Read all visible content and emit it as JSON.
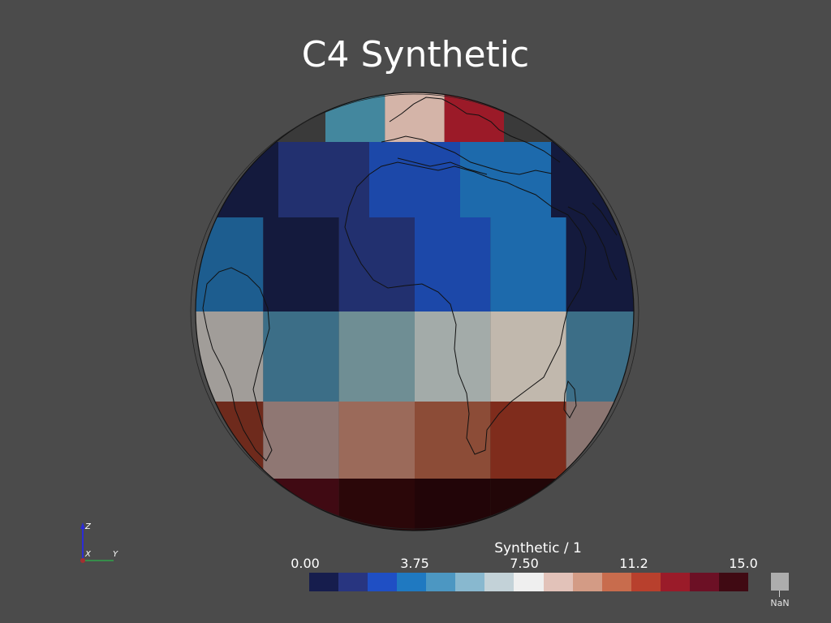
{
  "title": "C4 Synthetic",
  "colorbar": {
    "title": "Synthetic / 1",
    "ticks": [
      "0.00",
      "3.75",
      "7.50",
      "11.2",
      "15.0"
    ],
    "range": [
      0,
      15
    ],
    "colors": [
      "#161d4d",
      "#283580",
      "#1f4fc4",
      "#1f79c1",
      "#4c97c2",
      "#88b8cf",
      "#c3d2d8",
      "#efefef",
      "#e2c2b9",
      "#d39b85",
      "#c86c4d",
      "#b8402d",
      "#9a1b29",
      "#6c1025",
      "#400a13"
    ],
    "nan_label": "NaN",
    "nan_color": "#adadad"
  },
  "background": "#4b4b4b",
  "axes": {
    "x": "X",
    "y": "Y",
    "z": "Z"
  },
  "globe_cells": [
    [
      "#43879e",
      "#d4b4a8",
      "#9b1a28"
    ],
    [
      "#141a3d",
      "#22306f",
      "#1c48a9",
      "#1d6aac",
      "#141a3d"
    ],
    [
      "#1d5d8f",
      "#141a3d",
      "#22306f",
      "#1c48a9",
      "#1d6aac",
      "#141a3d"
    ],
    [
      "#a19d99",
      "#3c6e87",
      "#6f8e94",
      "#a3aba9",
      "#c1b8ad",
      "#3c6e87"
    ],
    [
      "#6e2a1c",
      "#8f7773",
      "#9b6a5a",
      "#8c4c37",
      "#7f2c1c",
      "#8b7672"
    ],
    [
      "#260a0e",
      "#400a13",
      "#2b0709",
      "#220508",
      "#220608",
      "#4a0d18"
    ],
    [
      "#46383a",
      "#1d3949",
      "#0b0f22"
    ]
  ]
}
